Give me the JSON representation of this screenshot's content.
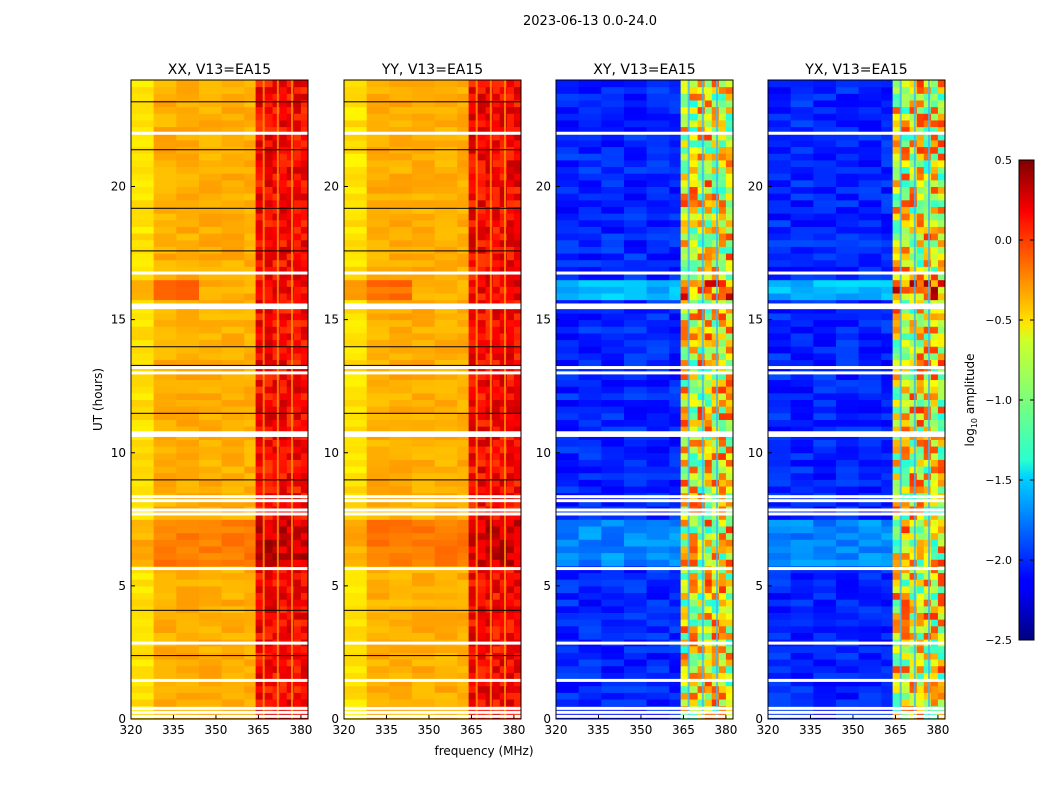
{
  "figure": {
    "suptitle": "2023-06-13 0.0-24.0"
  },
  "chart_data": [
    {
      "type": "heatmap",
      "title": "XX, V13=EA15",
      "xlabel": "",
      "ylabel": "UT (hours)",
      "xlim": [
        320,
        382.5
      ],
      "ylim": [
        0,
        24
      ],
      "xticks": [
        "320",
        "335",
        "350",
        "365",
        "380"
      ],
      "yticks": [
        "0",
        "5",
        "10",
        "15",
        "20"
      ],
      "palette": "autocorr"
    },
    {
      "type": "heatmap",
      "title": "YY, V13=EA15",
      "xlabel": "frequency (MHz)",
      "ylabel": "",
      "xlim": [
        320,
        382.5
      ],
      "ylim": [
        0,
        24
      ],
      "xticks": [
        "320",
        "335",
        "350",
        "365",
        "380"
      ],
      "yticks": [
        "0",
        "5",
        "10",
        "15",
        "20"
      ],
      "palette": "autocorr"
    },
    {
      "type": "heatmap",
      "title": "XY, V13=EA15",
      "xlabel": "",
      "ylabel": "",
      "xlim": [
        320,
        382.5
      ],
      "ylim": [
        0,
        24
      ],
      "xticks": [
        "320",
        "335",
        "350",
        "365",
        "380"
      ],
      "yticks": [
        "0",
        "5",
        "10",
        "15",
        "20"
      ],
      "palette": "crosscorr"
    },
    {
      "type": "heatmap",
      "title": "YX, V13=EA15",
      "xlabel": "",
      "ylabel": "",
      "xlim": [
        320,
        382.5
      ],
      "ylim": [
        0,
        24
      ],
      "xticks": [
        "320",
        "335",
        "350",
        "365",
        "380"
      ],
      "yticks": [
        "0",
        "5",
        "10",
        "15",
        "20"
      ],
      "palette": "crosscorr"
    }
  ],
  "colorbar": {
    "label": "log10 amplitude",
    "label_main": "log",
    "label_sub": "10",
    "label_rest": " amplitude",
    "colormap": "jet",
    "vmin": -2.5,
    "vmax": 0.5,
    "ticks": [
      "0.5",
      "0.0",
      "−0.5",
      "−1.0",
      "−1.5",
      "−2.0",
      "−2.5"
    ],
    "tick_values": [
      0.5,
      0.0,
      -0.5,
      -1.0,
      -1.5,
      -2.0,
      -2.5
    ]
  },
  "flag_rows_hours": [
    0.1,
    0.25,
    0.4,
    1.45,
    2.85,
    5.65,
    7.7,
    7.85,
    8.2,
    8.35,
    10.75,
    10.65,
    13.0,
    13.2,
    15.45,
    15.55,
    16.75,
    22.0
  ],
  "colors": {
    "axis": "#000000",
    "flag": "#ffffff",
    "missing": "#ffffff"
  }
}
